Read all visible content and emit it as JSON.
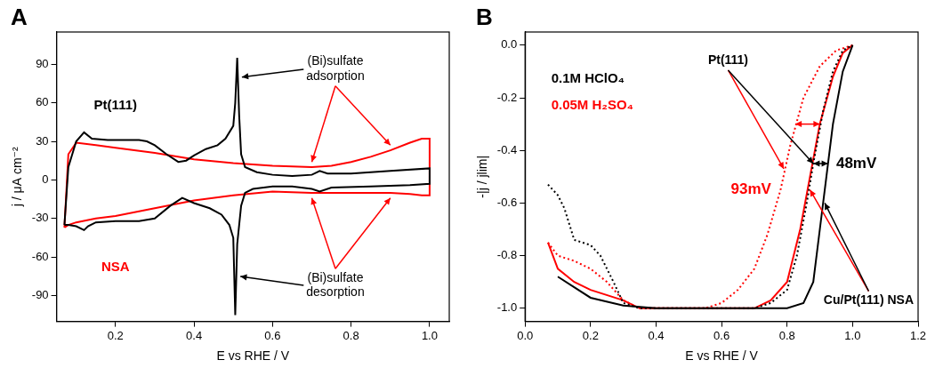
{
  "chart_data": [
    {
      "type": "line",
      "panel_label": "A",
      "x_label": "E vs RHE / V",
      "y_label": "j / μA cm⁻²",
      "xlim": [
        0.05,
        1.05
      ],
      "xticks": [
        0.2,
        0.4,
        0.6,
        0.8,
        {
          "value": 1,
          "label": "1.0"
        }
      ],
      "ylim": [
        -110,
        115
      ],
      "yticks": [
        -90,
        -60,
        -30,
        0,
        30,
        60,
        90
      ],
      "grid": false,
      "series": [
        {
          "color": "#000000",
          "line_style": "solid",
          "x": [
            0.07,
            0.08,
            0.1,
            0.12,
            0.14,
            0.18,
            0.22,
            0.26,
            0.28,
            0.3,
            0.33,
            0.36,
            0.38,
            0.4,
            0.43,
            0.46,
            0.48,
            0.5,
            0.505,
            0.51,
            0.515,
            0.52,
            0.53,
            0.56,
            0.6,
            0.65,
            0.7,
            0.72,
            0.74,
            0.8,
            0.9,
            1.0,
            1.0,
            0.95,
            0.85,
            0.75,
            0.72,
            0.7,
            0.65,
            0.6,
            0.55,
            0.53,
            0.52,
            0.51,
            0.505,
            0.5,
            0.49,
            0.47,
            0.44,
            0.4,
            0.37,
            0.34,
            0.3,
            0.26,
            0.2,
            0.15,
            0.13,
            0.12,
            0.1,
            0.08,
            0.07
          ],
          "values": [
            -35,
            10,
            30,
            37,
            32,
            31,
            31,
            31,
            30,
            27,
            20,
            14,
            15,
            19,
            24,
            27,
            32,
            42,
            60,
            95,
            50,
            20,
            10,
            6,
            4,
            3,
            4,
            7,
            5,
            5,
            7,
            9,
            -3,
            -4,
            -5,
            -6,
            -9,
            -7,
            -5,
            -5,
            -7,
            -10,
            -20,
            -50,
            -105,
            -45,
            -35,
            -27,
            -22,
            -18,
            -14,
            -20,
            -30,
            -32,
            -32,
            -33,
            -36,
            -39,
            -36,
            -35,
            -35
          ]
        },
        {
          "color": "#ff0000",
          "line_style": "solid",
          "x": [
            0.07,
            0.08,
            0.1,
            0.15,
            0.2,
            0.3,
            0.4,
            0.5,
            0.6,
            0.7,
            0.75,
            0.8,
            0.85,
            0.9,
            0.95,
            0.98,
            1.0,
            1.0,
            0.98,
            0.95,
            0.9,
            0.8,
            0.7,
            0.6,
            0.5,
            0.4,
            0.3,
            0.2,
            0.15,
            0.1,
            0.08,
            0.07
          ],
          "values": [
            -37,
            20,
            29,
            27,
            25,
            21,
            16,
            13,
            11,
            10,
            11,
            14,
            18,
            23,
            29,
            32,
            32,
            -12,
            -12,
            -11,
            -10,
            -10,
            -10,
            -9,
            -12,
            -16,
            -22,
            -28,
            -30,
            -33,
            -35,
            -37
          ]
        }
      ],
      "annotations": [
        {
          "text": "Pt(111)",
          "color": "#000000"
        },
        {
          "text": "NSA",
          "color": "#ff0000"
        },
        {
          "text": "(Bi)sulfate adsorption",
          "color": "#000000"
        },
        {
          "text": "(Bi)sulfate desorption",
          "color": "#000000"
        }
      ]
    },
    {
      "type": "line",
      "panel_label": "B",
      "x_label": "E vs RHE / V",
      "y_label": "-|j / jlim|",
      "xlim": [
        0,
        1.2
      ],
      "xticks": [
        {
          "value": 0,
          "label": "0.0"
        },
        0.2,
        0.4,
        0.6,
        0.8,
        {
          "value": 1,
          "label": "1.0"
        },
        1.2
      ],
      "ylim": [
        -1.05,
        0.05
      ],
      "yticks": [
        {
          "value": -1,
          "label": "-1.0"
        },
        -0.8,
        -0.6,
        -0.4,
        -0.2,
        {
          "value": 0,
          "label": "0.0"
        }
      ],
      "grid": false,
      "series": [
        {
          "color": "#000000",
          "line_style": "dotted",
          "x": [
            0.07,
            0.1,
            0.12,
            0.15,
            0.2,
            0.23,
            0.27,
            0.3,
            0.35,
            0.5,
            0.7,
            0.75,
            0.8,
            0.83,
            0.86,
            0.88,
            0.91,
            0.94,
            0.97,
            1.0
          ],
          "values": [
            -0.53,
            -0.57,
            -0.62,
            -0.74,
            -0.76,
            -0.8,
            -0.9,
            -0.98,
            -1.0,
            -1.0,
            -1.0,
            -0.98,
            -0.93,
            -0.8,
            -0.6,
            -0.45,
            -0.25,
            -0.1,
            -0.02,
            0
          ]
        },
        {
          "color": "#000000",
          "line_style": "solid",
          "x": [
            0.1,
            0.15,
            0.2,
            0.3,
            0.4,
            0.6,
            0.8,
            0.85,
            0.88,
            0.9,
            0.92,
            0.94,
            0.97,
            1.0
          ],
          "values": [
            -0.88,
            -0.92,
            -0.96,
            -0.99,
            -1.0,
            -1.0,
            -1.0,
            -0.98,
            -0.9,
            -0.7,
            -0.5,
            -0.3,
            -0.1,
            0
          ]
        },
        {
          "color": "#ff0000",
          "line_style": "dotted",
          "x": [
            0.07,
            0.1,
            0.15,
            0.2,
            0.25,
            0.3,
            0.35,
            0.55,
            0.6,
            0.65,
            0.7,
            0.74,
            0.78,
            0.81,
            0.85,
            0.9,
            0.95,
            1.0
          ],
          "values": [
            -0.75,
            -0.8,
            -0.82,
            -0.85,
            -0.9,
            -0.97,
            -1.0,
            -1.0,
            -0.98,
            -0.93,
            -0.85,
            -0.72,
            -0.55,
            -0.38,
            -0.2,
            -0.08,
            -0.02,
            0
          ]
        },
        {
          "color": "#ff0000",
          "line_style": "solid",
          "x": [
            0.07,
            0.1,
            0.15,
            0.2,
            0.3,
            0.35,
            0.7,
            0.75,
            0.8,
            0.84,
            0.87,
            0.9,
            0.94,
            0.97,
            1.0
          ],
          "values": [
            -0.75,
            -0.85,
            -0.9,
            -0.93,
            -0.97,
            -1.0,
            -1.0,
            -0.97,
            -0.9,
            -0.7,
            -0.5,
            -0.3,
            -0.12,
            -0.03,
            0
          ]
        }
      ],
      "annotations": [
        {
          "text": "Pt(111)",
          "color": "#000000"
        },
        {
          "text": "0.1M HClO₄",
          "color": "#000000"
        },
        {
          "text": "0.05M H₂SO₄",
          "color": "#ff0000"
        },
        {
          "text": "93mV",
          "color": "#ff0000"
        },
        {
          "text": "48mV",
          "color": "#000000"
        },
        {
          "text": "Cu/Pt(111) NSA",
          "color": "#000000"
        }
      ]
    }
  ]
}
